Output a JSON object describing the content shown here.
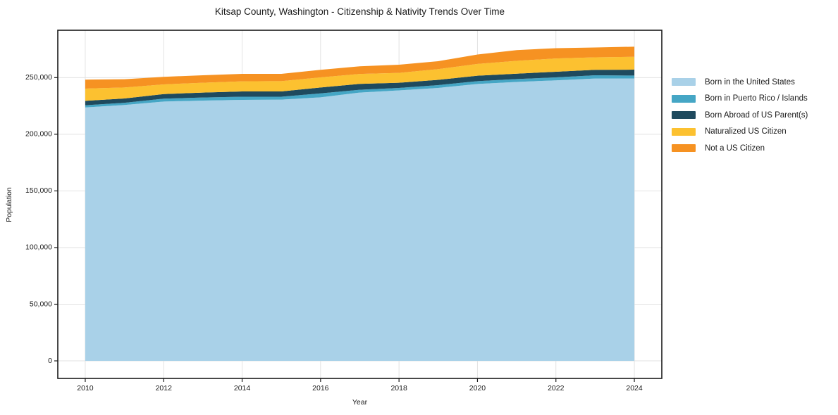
{
  "chart_data": {
    "type": "area",
    "stacked": true,
    "title": "Kitsap County, Washington - Citizenship & Nativity Trends Over Time",
    "xlabel": "Year",
    "ylabel": "Population",
    "x": [
      2010,
      2011,
      2012,
      2013,
      2014,
      2015,
      2016,
      2017,
      2018,
      2019,
      2020,
      2021,
      2022,
      2023,
      2024
    ],
    "series": [
      {
        "label": "Born in the United States",
        "color": "#a9d1e8",
        "values": [
          223700,
          225800,
          228900,
          229700,
          230300,
          230600,
          232600,
          236800,
          238700,
          240900,
          244400,
          246200,
          247600,
          249200,
          249300
        ]
      },
      {
        "label": "Born in Puerto Rico / Islands",
        "color": "#45a6c5",
        "values": [
          1900,
          2000,
          2500,
          2700,
          2800,
          2500,
          3500,
          2500,
          2200,
          2500,
          2500,
          2500,
          2600,
          2900,
          2500
        ]
      },
      {
        "label": "Born Abroad of US Parent(s)",
        "color": "#1f4a5e",
        "values": [
          3900,
          3800,
          4100,
          4400,
          4700,
          4700,
          5200,
          5200,
          4600,
          4600,
          4800,
          4800,
          5000,
          4800,
          5200
        ]
      },
      {
        "label": "Naturalized US Citizen",
        "color": "#fcc130",
        "values": [
          10800,
          9700,
          8500,
          8700,
          8900,
          9100,
          8900,
          8700,
          8700,
          9500,
          10400,
          11300,
          11700,
          11000,
          11400
        ]
      },
      {
        "label": "Not a US Citizen",
        "color": "#f69222",
        "values": [
          7900,
          7300,
          6700,
          6600,
          6600,
          6400,
          6700,
          6800,
          7200,
          7000,
          8300,
          9500,
          9100,
          8700,
          8900
        ]
      }
    ],
    "xticks": [
      2010,
      2012,
      2014,
      2016,
      2018,
      2020,
      2022,
      2024
    ],
    "xticklabels": [
      "2010",
      "2012",
      "2014",
      "2016",
      "2018",
      "2020",
      "2022",
      "2024"
    ],
    "yticks": [
      0,
      50000,
      100000,
      150000,
      200000,
      250000
    ],
    "yticklabels": [
      "0",
      "50,000",
      "100,000",
      "150,000",
      "200,000",
      "250,000"
    ],
    "xlim": [
      2009.3,
      2024.7
    ],
    "ylim": [
      -15500,
      291800
    ],
    "grid": true,
    "legend_position": "outside-right"
  },
  "colors": {
    "background": "#ffffff",
    "text": "#1a1a1a",
    "grid": "#e2e2e2",
    "spine": "#1a1a1a"
  }
}
